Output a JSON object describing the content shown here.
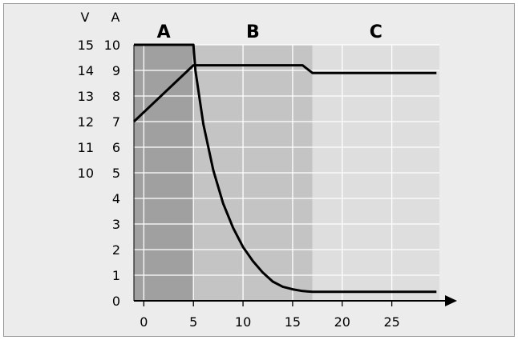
{
  "chart_data": {
    "type": "line",
    "x_ticks": [
      "0",
      "5",
      "10",
      "15",
      "20",
      "25"
    ],
    "y_axes": {
      "current": {
        "unit": "A",
        "ticks": [
          "0",
          "1",
          "2",
          "3",
          "4",
          "5",
          "6",
          "7",
          "8",
          "9",
          "10"
        ],
        "range": [
          0,
          10
        ]
      },
      "voltage": {
        "unit": "V",
        "ticks": [
          "10",
          "11",
          "12",
          "13",
          "14",
          "15"
        ],
        "aligned_with_current": [
          "5",
          "6",
          "7",
          "8",
          "9",
          "10"
        ]
      }
    },
    "x_range": [
      -1,
      29.8
    ],
    "phases": [
      {
        "label": "A",
        "x_start": -1,
        "x_end": 5,
        "color": "#a0a0a0"
      },
      {
        "label": "B",
        "x_start": 5,
        "x_end": 17,
        "color": "#c4c4c4"
      },
      {
        "label": "C",
        "x_start": 17,
        "x_end": 29.8,
        "color": "#dedede"
      }
    ],
    "series": [
      {
        "id": "voltage",
        "points": [
          [
            -1,
            12.0
          ],
          [
            5,
            14.2
          ],
          [
            16,
            14.2
          ],
          [
            17,
            13.9
          ],
          [
            29.5,
            13.9
          ]
        ]
      },
      {
        "id": "current",
        "points": [
          [
            -1,
            10
          ],
          [
            5,
            10
          ],
          [
            5.2,
            9.0
          ],
          [
            6,
            6.9
          ],
          [
            7,
            5.1
          ],
          [
            8,
            3.8
          ],
          [
            9,
            2.85
          ],
          [
            10,
            2.1
          ],
          [
            11,
            1.55
          ],
          [
            12,
            1.1
          ],
          [
            13,
            0.75
          ],
          [
            14,
            0.55
          ],
          [
            15,
            0.45
          ],
          [
            16,
            0.38
          ],
          [
            17,
            0.35
          ],
          [
            29.5,
            0.35
          ]
        ]
      }
    ],
    "grid": true
  }
}
